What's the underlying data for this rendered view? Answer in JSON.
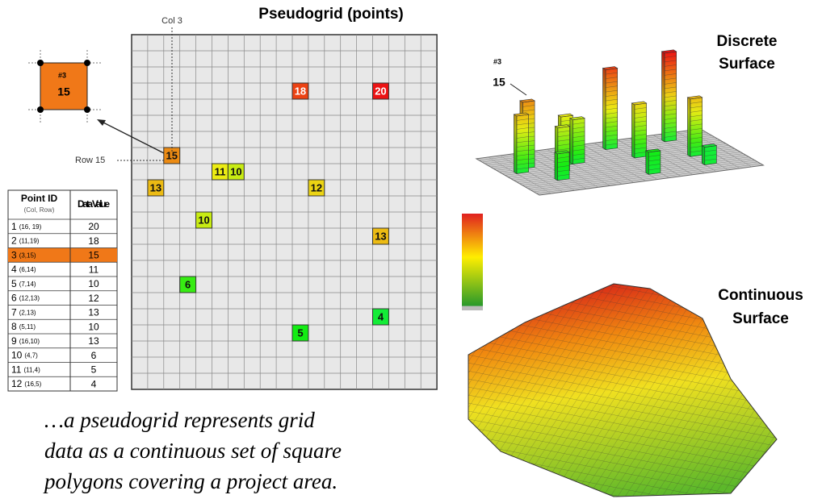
{
  "grid": {
    "title": "Pseudogrid (points)",
    "cols": 19,
    "rows": 22,
    "col_label": "Col 3",
    "row_label": "Row 15"
  },
  "callout": {
    "id": "#3",
    "value": "15"
  },
  "table": {
    "headers": [
      "Point ID",
      "(Col, Row)",
      "Data Value"
    ],
    "points": [
      {
        "id": "1",
        "coords": "(16, 19)",
        "col": 16,
        "row": 19,
        "value": 20
      },
      {
        "id": "2",
        "coords": "(11,19)",
        "col": 11,
        "row": 19,
        "value": 18
      },
      {
        "id": "3",
        "coords": "(3,15)",
        "col": 3,
        "row": 15,
        "value": 15,
        "highlight": true
      },
      {
        "id": "4",
        "coords": "(6,14)",
        "col": 6,
        "row": 14,
        "value": 11
      },
      {
        "id": "5",
        "coords": "(7,14)",
        "col": 7,
        "row": 14,
        "value": 10
      },
      {
        "id": "6",
        "coords": "(12,13)",
        "col": 12,
        "row": 13,
        "value": 12
      },
      {
        "id": "7",
        "coords": "(2,13)",
        "col": 2,
        "row": 13,
        "value": 13
      },
      {
        "id": "8",
        "coords": "(5,11)",
        "col": 5,
        "row": 11,
        "value": 10
      },
      {
        "id": "9",
        "coords": "(16,10)",
        "col": 16,
        "row": 10,
        "value": 13
      },
      {
        "id": "10",
        "coords": "(4,7)",
        "col": 4,
        "row": 7,
        "value": 6
      },
      {
        "id": "11",
        "coords": "(11,4)",
        "col": 11,
        "row": 4,
        "value": 5
      },
      {
        "id": "12",
        "coords": "(16,5)",
        "col": 16,
        "row": 5,
        "value": 4
      }
    ]
  },
  "discrete": {
    "title": [
      "Discrete",
      "Surface"
    ],
    "id": "#3",
    "value": "15"
  },
  "continuous": {
    "title": [
      "Continuous",
      "Surface"
    ]
  },
  "caption": [
    "…a pseudogrid represents grid",
    "data as a continuous set of square",
    "polygons covering a project area."
  ]
}
